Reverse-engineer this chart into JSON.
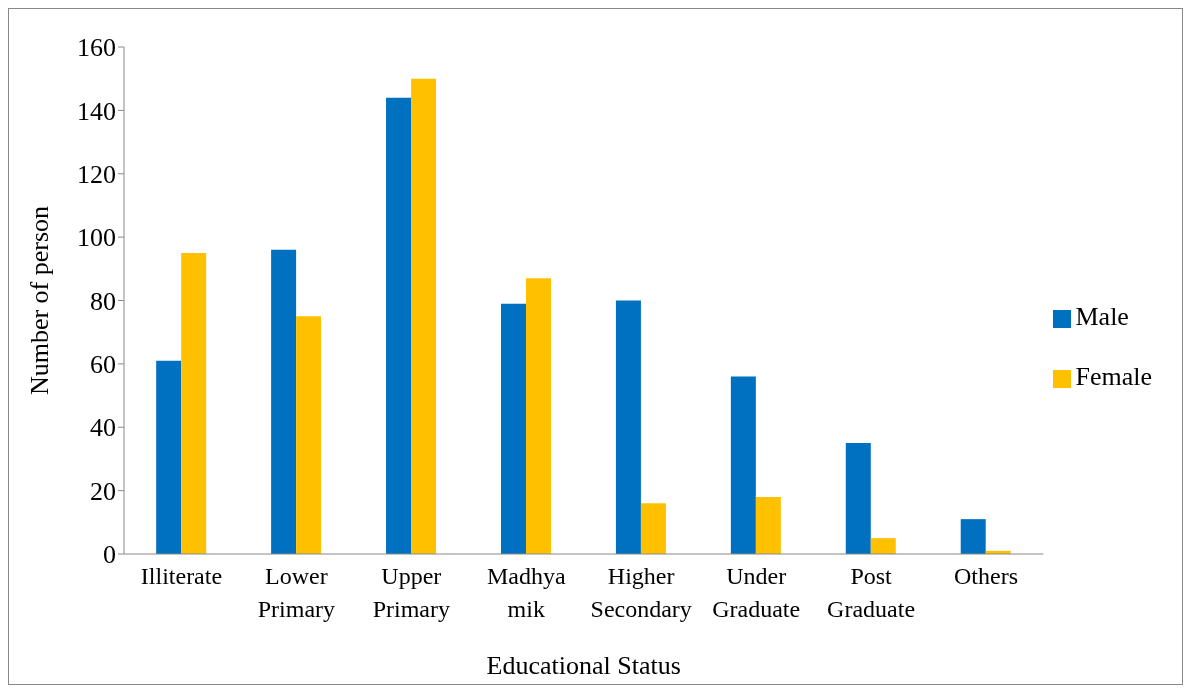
{
  "chart_data": {
    "type": "bar",
    "xlabel": "Educational Status",
    "ylabel": "Number of person",
    "categories": [
      "Illiterate",
      "Lower Primary",
      "Upper Primary",
      "Madhya mik",
      "Higher Secondary",
      "Under Graduate",
      "Post Graduate",
      "Others"
    ],
    "series": [
      {
        "name": "Male",
        "color": "#0070c0",
        "values": [
          61,
          96,
          144,
          79,
          80,
          56,
          35,
          11
        ]
      },
      {
        "name": "Female",
        "color": "#ffc000",
        "values": [
          95,
          75,
          150,
          87,
          16,
          18,
          5,
          1
        ]
      }
    ],
    "ylim": [
      0,
      160
    ],
    "yticks": [
      0,
      20,
      40,
      60,
      80,
      100,
      120,
      140,
      160
    ],
    "grid": false,
    "legend": "right"
  }
}
